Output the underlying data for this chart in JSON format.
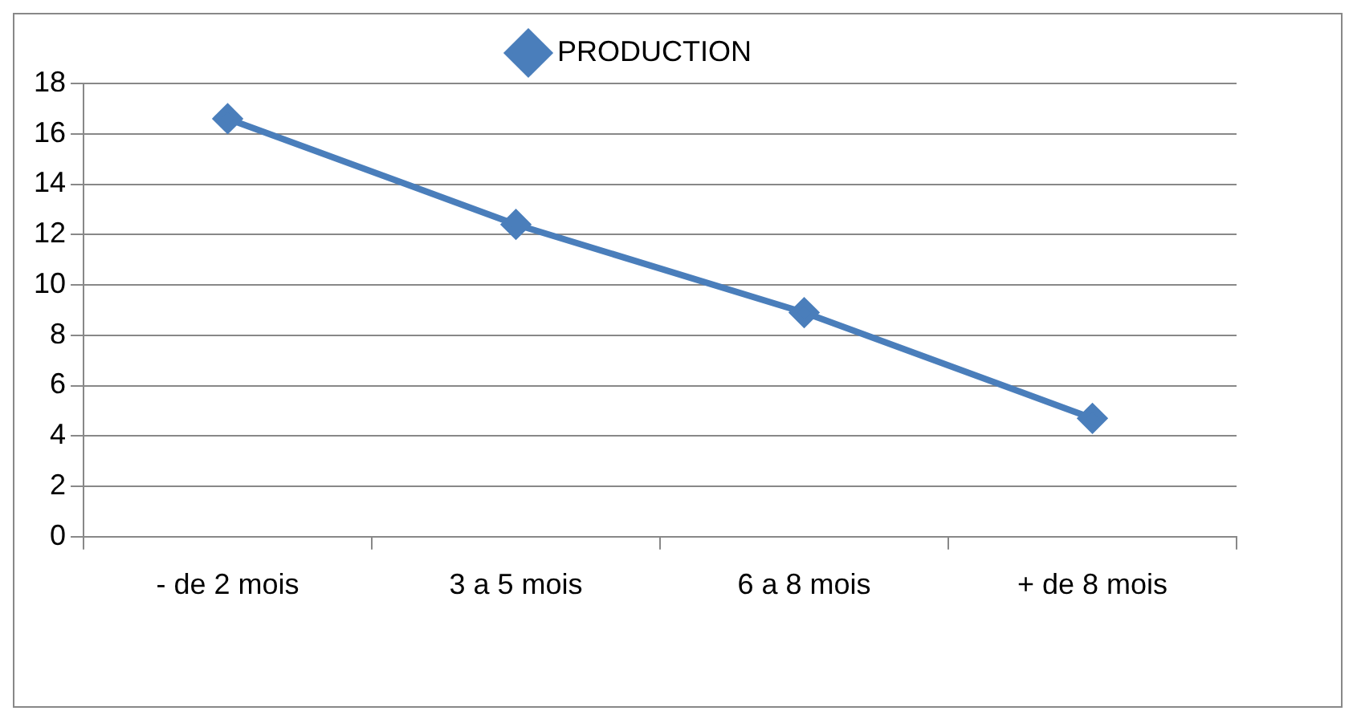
{
  "chart_data": {
    "type": "line",
    "categories": [
      "- de 2 mois",
      "3 a 5 mois",
      "6 a 8 mois",
      "+ de 8 mois"
    ],
    "series": [
      {
        "name": "PRODUCTION",
        "color": "#4a7ebb",
        "values": [
          16.6,
          12.4,
          8.9,
          4.7
        ]
      }
    ],
    "ylim": [
      0,
      18
    ],
    "yticks": [
      0,
      2,
      4,
      6,
      8,
      10,
      12,
      14,
      16,
      18
    ],
    "grid": "y",
    "legend": "top",
    "marker": "diamond",
    "line_style": "solid"
  }
}
